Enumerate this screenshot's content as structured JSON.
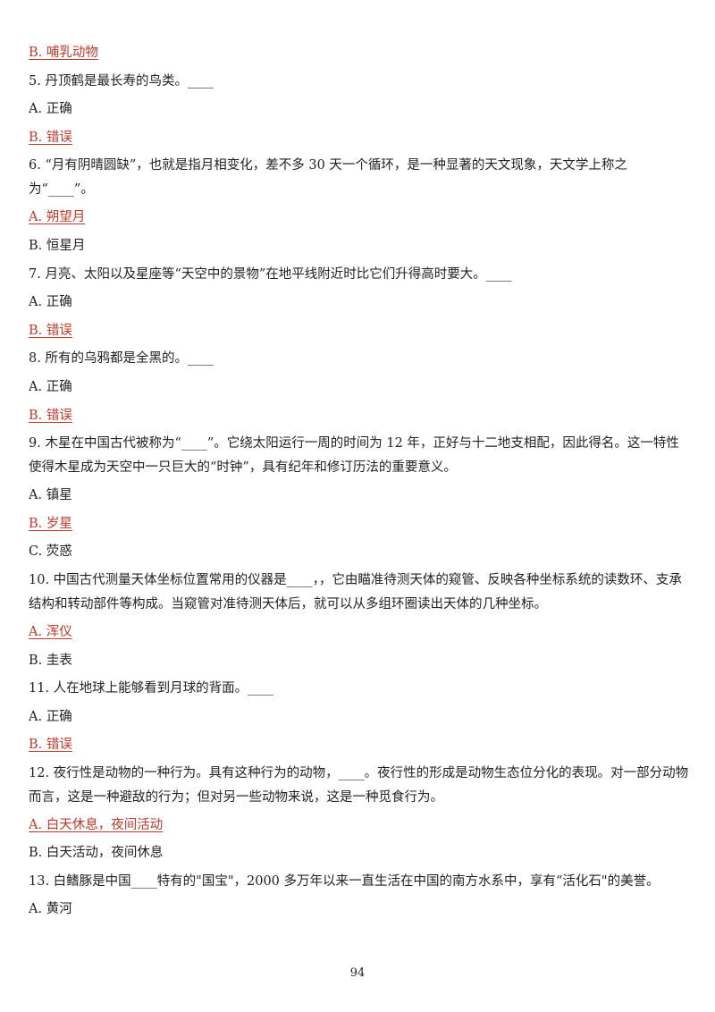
{
  "lines": [
    {
      "type": "option",
      "text": "B. 哺乳动物",
      "correct": true
    },
    {
      "type": "question",
      "text": "5. 丹顶鹤是最长寿的鸟类。____"
    },
    {
      "type": "option",
      "text": "A. 正确",
      "correct": false
    },
    {
      "type": "option",
      "text": "B. 错误",
      "correct": true
    },
    {
      "type": "question",
      "text": "6. “月有阴晴圆缺”，也就是指月相变化，差不多 30 天一个循环，是一种显著的天文现象，天文学上称之为“____”。",
      "multiline": true
    },
    {
      "type": "option",
      "text": "A. 朔望月",
      "correct": true
    },
    {
      "type": "option",
      "text": "B. 恒星月",
      "correct": false
    },
    {
      "type": "question",
      "text": "7. 月亮、太阳以及星座等“天空中的景物”在地平线附近时比它们升得高时要大。____"
    },
    {
      "type": "option",
      "text": "A. 正确",
      "correct": false
    },
    {
      "type": "option",
      "text": "B. 错误",
      "correct": true
    },
    {
      "type": "question",
      "text": "8. 所有的乌鸦都是全黑的。____"
    },
    {
      "type": "option",
      "text": "A. 正确",
      "correct": false
    },
    {
      "type": "option",
      "text": "B. 错误",
      "correct": true
    },
    {
      "type": "question",
      "text": "9. 木星在中国古代被称为“____”。它绕太阳运行一周的时间为 12 年，正好与十二地支相配，因此得名。这一特性使得木星成为天空中一只巨大的“时钟”，具有纪年和修订历法的重要意义。",
      "multiline": true
    },
    {
      "type": "option",
      "text": "A. 镇星",
      "correct": false
    },
    {
      "type": "option",
      "text": "B. 岁星",
      "correct": true
    },
    {
      "type": "option",
      "text": "C. 荧惑",
      "correct": false
    },
    {
      "type": "question",
      "text": "10. 中国古代测量天体坐标位置常用的仪器是____，，它由瞄准待测天体的窥管、反映各种坐标系统的读数环、支承结构和转动部件等构成。当窥管对准待测天体后，就可以从多组环圈读出天体的几种坐标。",
      "multiline": true
    },
    {
      "type": "option",
      "text": "A. 浑仪",
      "correct": true
    },
    {
      "type": "option",
      "text": "B. 圭表",
      "correct": false
    },
    {
      "type": "question",
      "text": "11. 人在地球上能够看到月球的背面。____"
    },
    {
      "type": "option",
      "text": "A. 正确",
      "correct": false
    },
    {
      "type": "option",
      "text": "B. 错误",
      "correct": true
    },
    {
      "type": "question",
      "text": "12. 夜行性是动物的一种行为。具有这种行为的动物，____。夜行性的形成是动物生态位分化的表现。对一部分动物而言，这是一种避敌的行为；但对另一些动物来说，这是一种觅食行为。",
      "multiline": true
    },
    {
      "type": "option",
      "text": "A. 白天休息，夜间活动",
      "correct": true
    },
    {
      "type": "option",
      "text": "B. 白天活动，夜间休息",
      "correct": false
    },
    {
      "type": "question",
      "text": "13. 白鳍豚是中国____特有的\"国宝\"，2000 多万年以来一直生活在中国的南方水系中，享有“活化石\"的美誉。",
      "multiline": true
    },
    {
      "type": "option",
      "text": "A. 黄河",
      "correct": false
    }
  ],
  "page_number": "94",
  "colors": {
    "correct_answer": "#c0392b",
    "text": "#222222"
  }
}
